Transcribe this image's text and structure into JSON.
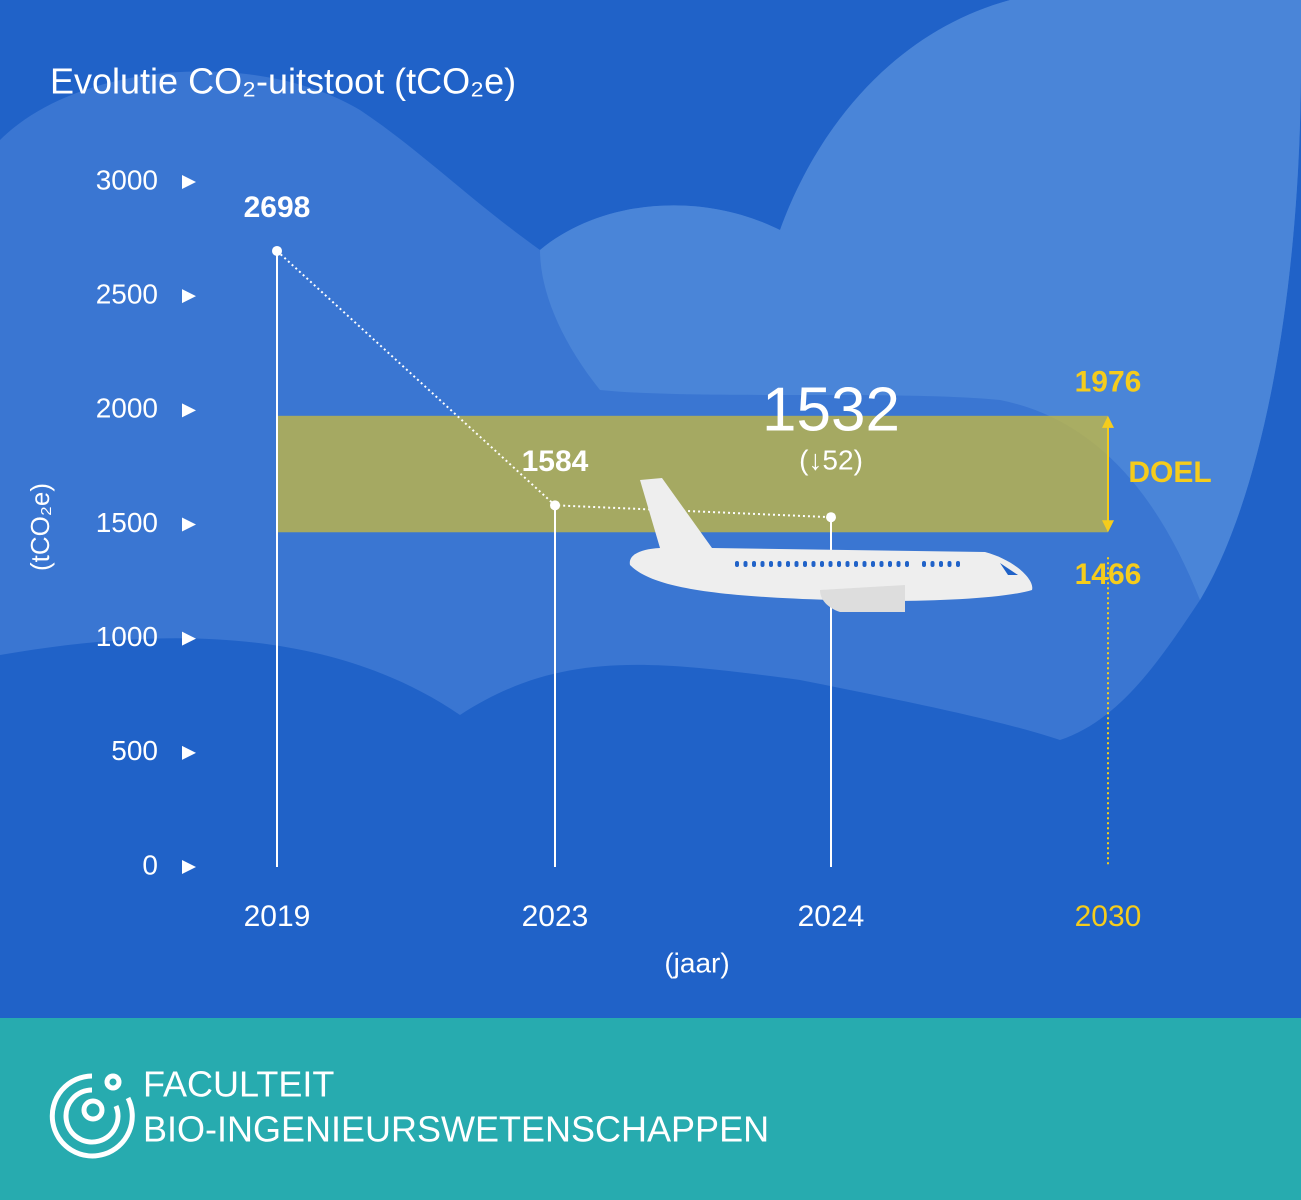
{
  "chart_data": {
    "type": "line",
    "title": "Evolutie CO₂-uitstoot (tCO₂e)",
    "y_label": "(tCO₂e)",
    "x_label": "(jaar)",
    "categories": [
      "2019",
      "2023",
      "2024",
      "2030"
    ],
    "values": [
      2698,
      1584,
      1532,
      null
    ],
    "color": "#ffffff",
    "ylim": [
      0,
      3000
    ],
    "yticks": [
      0,
      500,
      1000,
      1500,
      2000,
      2500,
      3000
    ],
    "annotation": "(↓52)",
    "target": {
      "low": 1466,
      "high": 1976,
      "label": "DOEL",
      "color": "#f5cc1c",
      "band_color": "#c9bb3c"
    }
  },
  "footer": {
    "line1": "FACULTEIT",
    "line2": "BIO-INGENIEURSWETENSCHAPPEN"
  }
}
